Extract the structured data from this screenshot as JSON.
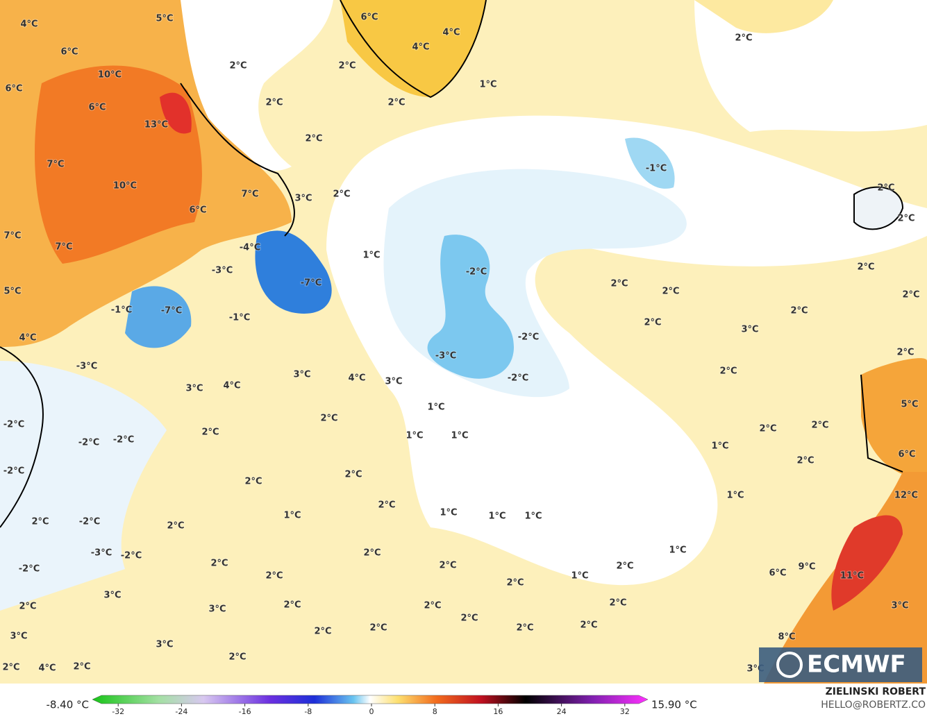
{
  "map": {
    "labels": [
      "4°C",
      "5°C",
      "6°C",
      "6°C",
      "10°C",
      "6°C",
      "13°C",
      "7°C",
      "10°C",
      "6°C",
      "7°C",
      "7°C",
      "7°C",
      "5°C",
      "4°C",
      "-4°C",
      "-3°C",
      "-7°C",
      "-7°C",
      "-1°C",
      "-1°C",
      "-3°C",
      "6°C",
      "4°C",
      "4°C",
      "2°C",
      "2°C",
      "2°C",
      "2°C",
      "1°C",
      "2°C",
      "2°C",
      "3°C",
      "2°C",
      "-1°C",
      "2°C",
      "2°C",
      "1°C",
      "-2°C",
      "2°C",
      "2°C",
      "2°C",
      "2°C",
      "2°C",
      "2°C",
      "3°C",
      "-2°C",
      "-3°C",
      "-2°C",
      "2°C",
      "2°C",
      "3°C",
      "4°C",
      "3°C",
      "4°C",
      "3°C",
      "1°C",
      "2°C",
      "2°C",
      "1°C",
      "1°C",
      "-2°C",
      "-2°C",
      "-2°C",
      "-2°C",
      "2°C",
      "2°C",
      "5°C",
      "1°C",
      "2°C",
      "6°C",
      "2°C",
      "2°C",
      "1°C",
      "12°C",
      "2°C",
      "1°C",
      "1°C",
      "1°C",
      "1°C",
      "2°C",
      "-2°C",
      "2°C",
      "1°C",
      "2°C",
      "-3°C",
      "-2°C",
      "-2°C",
      "2°C",
      "2°C",
      "2°C",
      "2°C",
      "2°C",
      "1°C",
      "6°C",
      "9°C",
      "11°C",
      "3°C",
      "2°C",
      "3°C",
      "2°C",
      "2°C",
      "2°C",
      "2°C",
      "3°C",
      "3°C",
      "3°C",
      "2°C",
      "2°C",
      "2°C",
      "2°C",
      "8°C",
      "2°C",
      "4°C",
      "2°C",
      "2°C",
      "3°C"
    ]
  },
  "legend": {
    "min_label": "-8.40 °C",
    "max_label": "15.90 °C",
    "ticks": [
      -32,
      -24,
      -16,
      -8,
      0,
      8,
      16,
      24,
      32
    ]
  },
  "logo": "ECMWF",
  "credit": {
    "name": "ZIELINSKI ROBERT",
    "email": "HELLO@ROBERTZ.CO"
  }
}
